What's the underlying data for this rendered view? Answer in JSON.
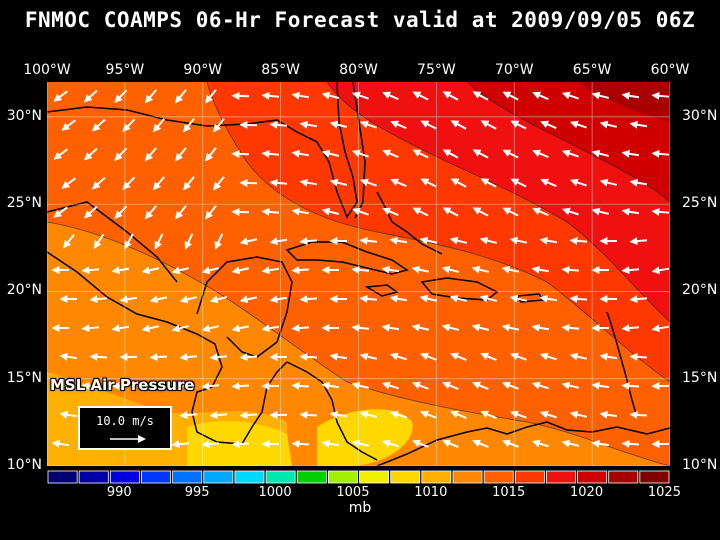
{
  "title": "FNMOC COAMPS 06-Hr Forecast valid at 2009/09/05 06Z",
  "longitude_labels": [
    "100°W",
    "95°W",
    "90°W",
    "85°W",
    "80°W",
    "75°W",
    "70°W",
    "65°W",
    "60°W"
  ],
  "latitude_labels": [
    "30°N",
    "25°N",
    "20°N",
    "15°N",
    "10°N"
  ],
  "parameter_label": "MSL Air Pressure",
  "wind_reference": {
    "label": "10.0 m/s",
    "speed_m_s": 10.0
  },
  "colorbar": {
    "units": "mb",
    "tick_labels": [
      "990",
      "995",
      "1000",
      "1005",
      "1010",
      "1015",
      "1020",
      "1025"
    ],
    "colors": [
      "#000070",
      "#0000a8",
      "#0000e0",
      "#0038ff",
      "#0070ff",
      "#00a8ff",
      "#00d8ff",
      "#00e8b0",
      "#00d000",
      "#a0f000",
      "#f0f000",
      "#ffd800",
      "#ffb000",
      "#ff8800",
      "#ff6000",
      "#ff3800",
      "#f01010",
      "#d00000",
      "#a80000",
      "#800000"
    ]
  },
  "map": {
    "lon_range": [
      -100,
      -60
    ],
    "lat_range": [
      10,
      32
    ],
    "gridlines": true
  }
}
